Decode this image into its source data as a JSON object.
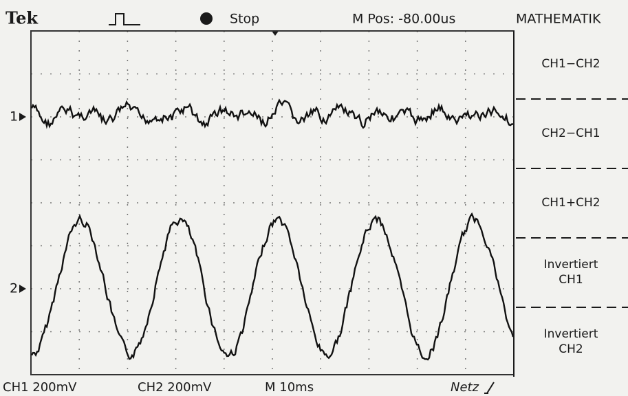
{
  "header": {
    "brand": "Tek",
    "state": "Stop",
    "position": "M Pos: -80.00us",
    "menu_title": "MATHEMATIK"
  },
  "channel_markers": [
    "1",
    "2"
  ],
  "menu": [
    [
      "CH1−CH2"
    ],
    [
      "CH2−CH1"
    ],
    [
      "CH1+CH2"
    ],
    [
      "Invertiert",
      "CH1"
    ],
    [
      "Invertiert",
      "CH2"
    ]
  ],
  "footer": {
    "ch1": "CH1 200mV",
    "ch2": "CH2 200mV",
    "timebase": "M 10ms",
    "trigger": "Netz"
  }
}
